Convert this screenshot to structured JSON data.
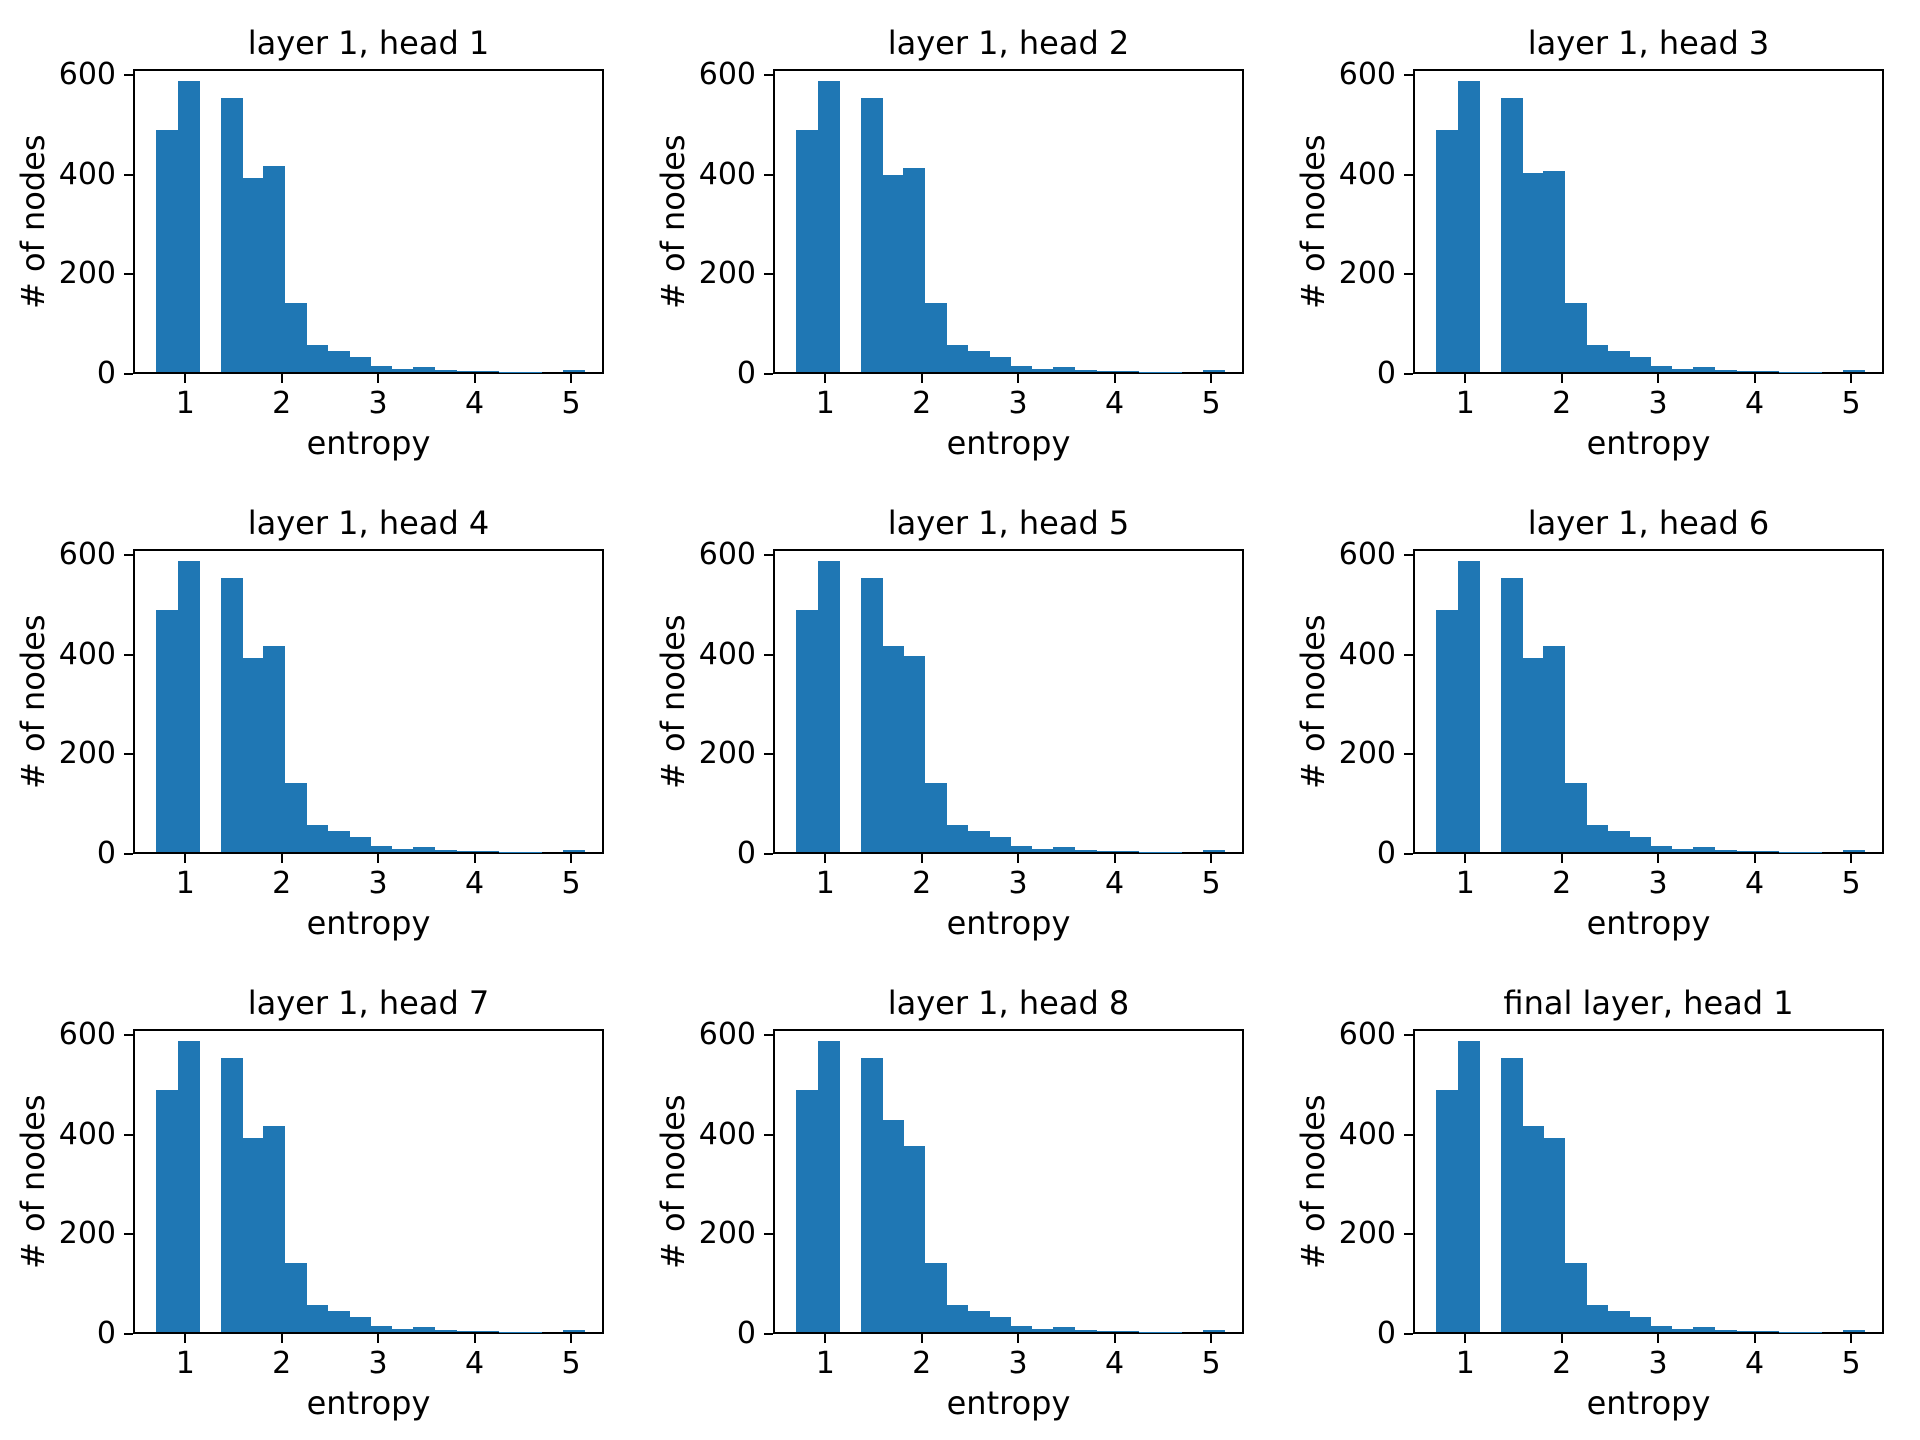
{
  "figure": {
    "background_color": "#ffffff",
    "bar_color": "#1f77b4",
    "axis_color": "#000000"
  },
  "chart_data": [
    {
      "type": "bar",
      "title": "layer 1, head 1",
      "xlabel": "entropy",
      "ylabel": "# of nodes",
      "bin_start": 0.68,
      "bin_width": 0.222,
      "xlim": [
        0.458,
        5.342
      ],
      "ylim": [
        0,
        612
      ],
      "xticks": [
        1,
        2,
        3,
        4,
        5
      ],
      "yticks": [
        0,
        200,
        400,
        600
      ],
      "grid": false,
      "values": [
        485,
        583,
        0,
        550,
        390,
        413,
        138,
        55,
        42,
        30,
        13,
        7,
        10,
        5,
        3,
        2,
        1,
        1,
        0,
        4
      ]
    },
    {
      "type": "bar",
      "title": "layer 1, head 2",
      "xlabel": "entropy",
      "ylabel": "# of nodes",
      "bin_start": 0.68,
      "bin_width": 0.222,
      "xlim": [
        0.458,
        5.342
      ],
      "ylim": [
        0,
        612
      ],
      "xticks": [
        1,
        2,
        3,
        4,
        5
      ],
      "yticks": [
        0,
        200,
        400,
        600
      ],
      "grid": false,
      "values": [
        485,
        583,
        0,
        550,
        396,
        409,
        138,
        55,
        42,
        30,
        13,
        7,
        10,
        5,
        3,
        2,
        1,
        1,
        0,
        4
      ]
    },
    {
      "type": "bar",
      "title": "layer 1, head 3",
      "xlabel": "entropy",
      "ylabel": "# of nodes",
      "bin_start": 0.68,
      "bin_width": 0.222,
      "xlim": [
        0.458,
        5.342
      ],
      "ylim": [
        0,
        612
      ],
      "xticks": [
        1,
        2,
        3,
        4,
        5
      ],
      "yticks": [
        0,
        200,
        400,
        600
      ],
      "grid": false,
      "values": [
        485,
        583,
        0,
        550,
        400,
        403,
        138,
        55,
        42,
        30,
        13,
        7,
        10,
        5,
        3,
        2,
        1,
        1,
        0,
        4
      ]
    },
    {
      "type": "bar",
      "title": "layer 1, head 4",
      "xlabel": "entropy",
      "ylabel": "# of nodes",
      "bin_start": 0.68,
      "bin_width": 0.222,
      "xlim": [
        0.458,
        5.342
      ],
      "ylim": [
        0,
        612
      ],
      "xticks": [
        1,
        2,
        3,
        4,
        5
      ],
      "yticks": [
        0,
        200,
        400,
        600
      ],
      "grid": false,
      "values": [
        485,
        583,
        0,
        550,
        390,
        413,
        138,
        55,
        42,
        30,
        13,
        7,
        10,
        5,
        3,
        2,
        1,
        1,
        0,
        4
      ]
    },
    {
      "type": "bar",
      "title": "layer 1, head 5",
      "xlabel": "entropy",
      "ylabel": "# of nodes",
      "bin_start": 0.68,
      "bin_width": 0.222,
      "xlim": [
        0.458,
        5.342
      ],
      "ylim": [
        0,
        612
      ],
      "xticks": [
        1,
        2,
        3,
        4,
        5
      ],
      "yticks": [
        0,
        200,
        400,
        600
      ],
      "grid": false,
      "values": [
        485,
        583,
        0,
        550,
        413,
        393,
        138,
        55,
        42,
        30,
        13,
        7,
        10,
        5,
        3,
        2,
        1,
        1,
        0,
        4
      ]
    },
    {
      "type": "bar",
      "title": "layer 1, head 6",
      "xlabel": "entropy",
      "ylabel": "# of nodes",
      "bin_start": 0.68,
      "bin_width": 0.222,
      "xlim": [
        0.458,
        5.342
      ],
      "ylim": [
        0,
        612
      ],
      "xticks": [
        1,
        2,
        3,
        4,
        5
      ],
      "yticks": [
        0,
        200,
        400,
        600
      ],
      "grid": false,
      "values": [
        485,
        583,
        0,
        550,
        390,
        413,
        138,
        55,
        42,
        30,
        13,
        7,
        10,
        5,
        3,
        2,
        1,
        1,
        0,
        4
      ]
    },
    {
      "type": "bar",
      "title": "layer 1, head 7",
      "xlabel": "entropy",
      "ylabel": "# of nodes",
      "bin_start": 0.68,
      "bin_width": 0.222,
      "xlim": [
        0.458,
        5.342
      ],
      "ylim": [
        0,
        612
      ],
      "xticks": [
        1,
        2,
        3,
        4,
        5
      ],
      "yticks": [
        0,
        200,
        400,
        600
      ],
      "grid": false,
      "values": [
        485,
        583,
        0,
        550,
        390,
        413,
        138,
        55,
        42,
        30,
        13,
        7,
        10,
        5,
        3,
        2,
        1,
        1,
        0,
        4
      ]
    },
    {
      "type": "bar",
      "title": "layer 1, head 8",
      "xlabel": "entropy",
      "ylabel": "# of nodes",
      "bin_start": 0.68,
      "bin_width": 0.222,
      "xlim": [
        0.458,
        5.342
      ],
      "ylim": [
        0,
        612
      ],
      "xticks": [
        1,
        2,
        3,
        4,
        5
      ],
      "yticks": [
        0,
        200,
        400,
        600
      ],
      "grid": false,
      "values": [
        485,
        583,
        0,
        550,
        425,
        374,
        138,
        55,
        42,
        30,
        13,
        7,
        10,
        5,
        3,
        2,
        1,
        1,
        0,
        4
      ]
    },
    {
      "type": "bar",
      "title": "final layer, head 1",
      "xlabel": "entropy",
      "ylabel": "# of nodes",
      "bin_start": 0.68,
      "bin_width": 0.222,
      "xlim": [
        0.458,
        5.342
      ],
      "ylim": [
        0,
        612
      ],
      "xticks": [
        1,
        2,
        3,
        4,
        5
      ],
      "yticks": [
        0,
        200,
        400,
        600
      ],
      "grid": false,
      "values": [
        485,
        583,
        0,
        550,
        413,
        390,
        138,
        55,
        42,
        30,
        13,
        7,
        10,
        5,
        3,
        2,
        1,
        1,
        0,
        4
      ]
    }
  ]
}
